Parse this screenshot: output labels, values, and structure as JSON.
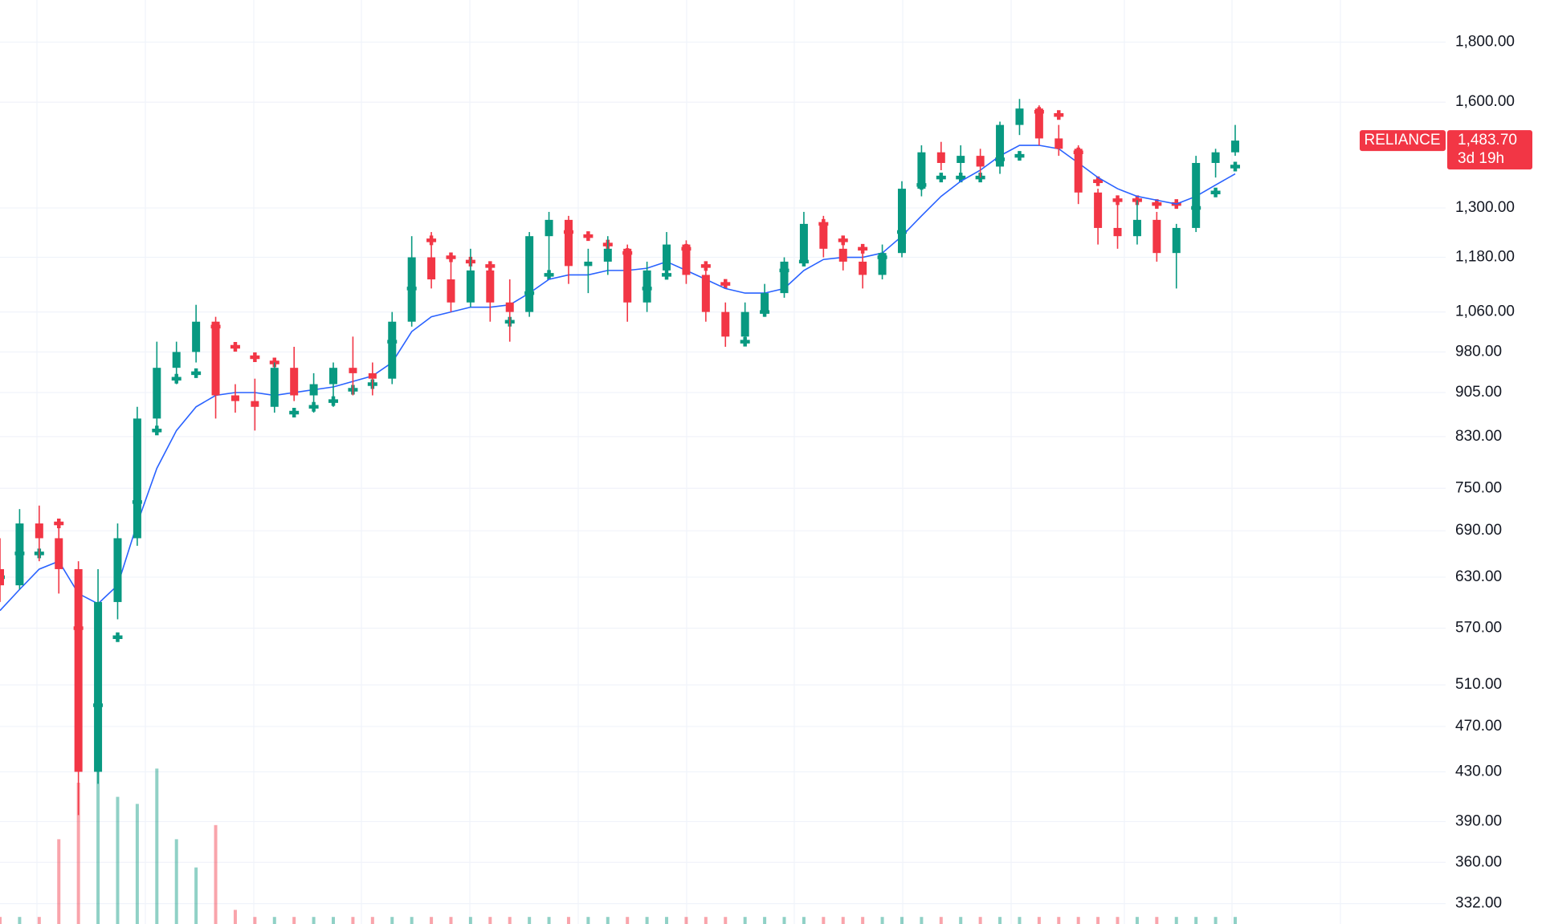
{
  "chart_data": {
    "type": "candlestick",
    "symbol": "RELIANCE",
    "last_value_label": "1,483.70",
    "countdown": "3d 19h",
    "log_scale": true,
    "grid": true,
    "up_color": "#089981",
    "down_color": "#f23645",
    "ma_color": "#2962ff",
    "ylim": [
      319,
      1955
    ],
    "yticks": [
      {
        "value": 1800,
        "label": "1,800.00"
      },
      {
        "value": 1600,
        "label": "1,600.00"
      },
      {
        "value": 1300,
        "label": "1,300.00"
      },
      {
        "value": 1180,
        "label": "1,180.00"
      },
      {
        "value": 1060,
        "label": "1,060.00"
      },
      {
        "value": 980,
        "label": "980.00"
      },
      {
        "value": 905,
        "label": "905.00"
      },
      {
        "value": 830,
        "label": "830.00"
      },
      {
        "value": 750,
        "label": "750.00"
      },
      {
        "value": 690,
        "label": "690.00"
      },
      {
        "value": 630,
        "label": "630.00"
      },
      {
        "value": 570,
        "label": "570.00"
      },
      {
        "value": 510,
        "label": "510.00"
      },
      {
        "value": 470,
        "label": "470.00"
      },
      {
        "value": 430,
        "label": "430.00"
      },
      {
        "value": 390,
        "label": "390.00"
      },
      {
        "value": 360,
        "label": "360.00"
      },
      {
        "value": 332,
        "label": "332.00"
      }
    ],
    "candles": [
      [
        640,
        680,
        600,
        620
      ],
      [
        620,
        720,
        615,
        700
      ],
      [
        700,
        725,
        650,
        680
      ],
      [
        680,
        700,
        610,
        640
      ],
      [
        640,
        650,
        395,
        430
      ],
      [
        430,
        640,
        420,
        600
      ],
      [
        600,
        700,
        580,
        680
      ],
      [
        680,
        880,
        670,
        860
      ],
      [
        860,
        1000,
        840,
        950
      ],
      [
        950,
        1000,
        920,
        980
      ],
      [
        980,
        1075,
        960,
        1040
      ],
      [
        1040,
        1050,
        860,
        900
      ],
      [
        900,
        920,
        870,
        890
      ],
      [
        890,
        930,
        840,
        880
      ],
      [
        880,
        960,
        870,
        950
      ],
      [
        950,
        990,
        890,
        900
      ],
      [
        900,
        940,
        870,
        920
      ],
      [
        920,
        960,
        880,
        950
      ],
      [
        950,
        1010,
        900,
        940
      ],
      [
        940,
        960,
        900,
        930
      ],
      [
        930,
        1060,
        920,
        1040
      ],
      [
        1040,
        1230,
        1030,
        1180
      ],
      [
        1180,
        1240,
        1110,
        1130
      ],
      [
        1130,
        1170,
        1060,
        1080
      ],
      [
        1080,
        1200,
        1070,
        1150
      ],
      [
        1150,
        1170,
        1040,
        1080
      ],
      [
        1080,
        1130,
        1000,
        1060
      ],
      [
        1060,
        1240,
        1050,
        1230
      ],
      [
        1230,
        1290,
        1150,
        1270
      ],
      [
        1270,
        1280,
        1120,
        1160
      ],
      [
        1160,
        1200,
        1100,
        1170
      ],
      [
        1170,
        1230,
        1140,
        1200
      ],
      [
        1200,
        1210,
        1040,
        1080
      ],
      [
        1080,
        1170,
        1060,
        1150
      ],
      [
        1150,
        1240,
        1130,
        1210
      ],
      [
        1210,
        1220,
        1120,
        1140
      ],
      [
        1140,
        1160,
        1040,
        1060
      ],
      [
        1060,
        1080,
        990,
        1010
      ],
      [
        1010,
        1080,
        1000,
        1060
      ],
      [
        1060,
        1120,
        1050,
        1100
      ],
      [
        1100,
        1180,
        1090,
        1170
      ],
      [
        1170,
        1290,
        1160,
        1260
      ],
      [
        1260,
        1280,
        1180,
        1200
      ],
      [
        1200,
        1230,
        1150,
        1170
      ],
      [
        1170,
        1200,
        1110,
        1140
      ],
      [
        1140,
        1210,
        1130,
        1190
      ],
      [
        1190,
        1370,
        1180,
        1350
      ],
      [
        1350,
        1470,
        1330,
        1450
      ],
      [
        1450,
        1480,
        1400,
        1420
      ],
      [
        1420,
        1470,
        1390,
        1440
      ],
      [
        1440,
        1460,
        1380,
        1410
      ],
      [
        1410,
        1540,
        1390,
        1530
      ],
      [
        1530,
        1610,
        1500,
        1580
      ],
      [
        1580,
        1590,
        1470,
        1490
      ],
      [
        1490,
        1530,
        1440,
        1460
      ],
      [
        1460,
        1470,
        1310,
        1340
      ],
      [
        1340,
        1350,
        1210,
        1250
      ],
      [
        1250,
        1310,
        1200,
        1230
      ],
      [
        1230,
        1320,
        1210,
        1270
      ],
      [
        1270,
        1290,
        1170,
        1190
      ],
      [
        1190,
        1260,
        1110,
        1250
      ],
      [
        1250,
        1440,
        1240,
        1420
      ],
      [
        1420,
        1460,
        1380,
        1450
      ],
      [
        1450,
        1530,
        1440,
        1483.7
      ]
    ],
    "ma": [
      590,
      615,
      640,
      650,
      610,
      598,
      620,
      700,
      780,
      840,
      880,
      900,
      905,
      905,
      900,
      905,
      910,
      915,
      925,
      935,
      960,
      1020,
      1050,
      1060,
      1070,
      1070,
      1075,
      1100,
      1130,
      1140,
      1140,
      1150,
      1150,
      1155,
      1170,
      1150,
      1130,
      1110,
      1100,
      1100,
      1110,
      1150,
      1175,
      1180,
      1180,
      1190,
      1230,
      1280,
      1330,
      1370,
      1400,
      1440,
      1470,
      1470,
      1460,
      1420,
      1380,
      1350,
      1330,
      1320,
      1310,
      1330,
      1360,
      1390
    ],
    "stop_up": [
      630,
      660,
      660,
      null,
      null,
      490,
      560,
      730,
      840,
      930,
      940,
      null,
      null,
      null,
      null,
      870,
      880,
      890,
      910,
      920,
      1000,
      1110,
      null,
      null,
      null,
      null,
      1040,
      1100,
      1140,
      null,
      null,
      null,
      null,
      1110,
      1140,
      null,
      null,
      null,
      1000,
      1060,
      1150,
      1170,
      null,
      null,
      null,
      1180,
      1240,
      1360,
      1380,
      1380,
      1380,
      1430,
      1440,
      null,
      null,
      null,
      null,
      null,
      null,
      null,
      null,
      1300,
      1340,
      1410
    ],
    "stop_down": [
      null,
      null,
      null,
      700,
      570,
      null,
      null,
      null,
      null,
      null,
      null,
      1030,
      990,
      970,
      960,
      null,
      null,
      null,
      null,
      null,
      null,
      null,
      1220,
      1180,
      1170,
      1160,
      null,
      null,
      null,
      1240,
      1230,
      1210,
      1190,
      null,
      null,
      1200,
      1160,
      1120,
      null,
      null,
      null,
      null,
      1260,
      1220,
      1200,
      null,
      null,
      null,
      null,
      null,
      null,
      null,
      null,
      1570,
      1560,
      1450,
      1370,
      1320,
      1320,
      1310,
      1310,
      null,
      null,
      null
    ],
    "volume": [
      1,
      1,
      1,
      12,
      20,
      25,
      18,
      17,
      22,
      12,
      8,
      14,
      2,
      1,
      1,
      1,
      1,
      1,
      1,
      1,
      1,
      1,
      1,
      1,
      1,
      1,
      1,
      1,
      1,
      1,
      1,
      1,
      1,
      1,
      1,
      1,
      1,
      1,
      1,
      1,
      1,
      1,
      1,
      1,
      1,
      1,
      1,
      1,
      1,
      1,
      1,
      1,
      1,
      1,
      1,
      1,
      1,
      1,
      1,
      1,
      1,
      1,
      1,
      1
    ]
  }
}
